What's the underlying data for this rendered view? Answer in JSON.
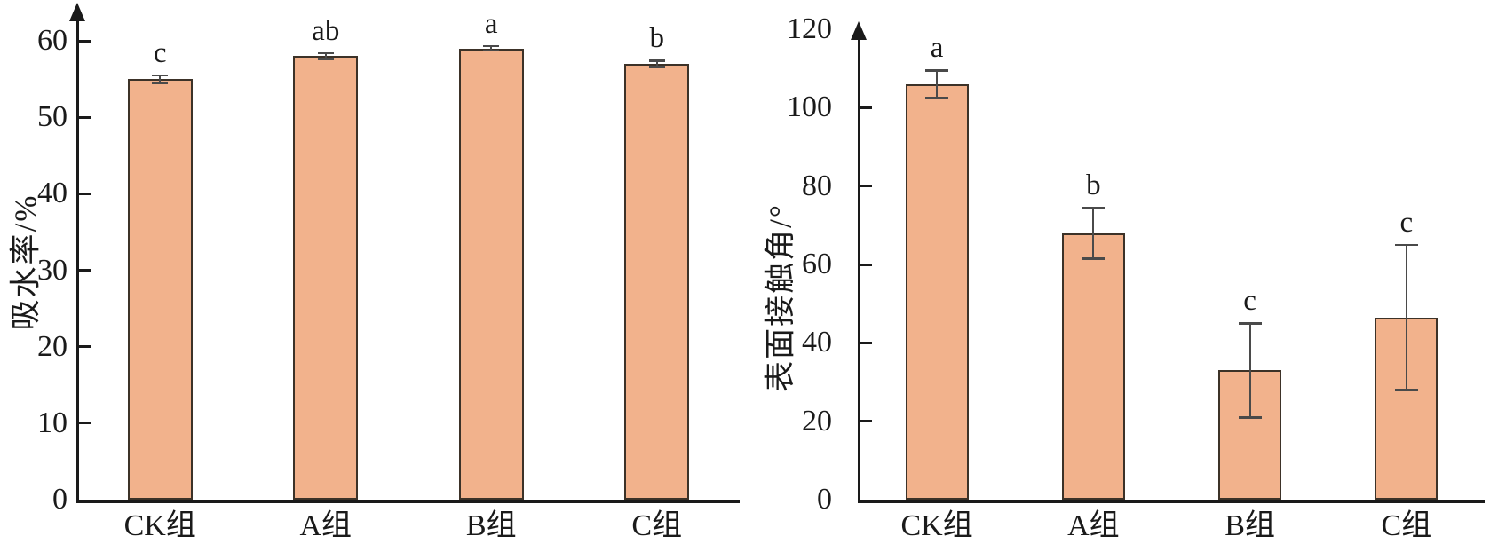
{
  "figure": {
    "background": "#ffffff",
    "bar_fill": "#F2B28C",
    "bar_border": "#3c3228",
    "error_color": "#4a4a4a",
    "axis_color": "#1a1a1a"
  },
  "chart_data": [
    {
      "type": "bar",
      "title": "",
      "xlabel": "",
      "ylabel": "吸水率/%",
      "categories": [
        "CK组",
        "A组",
        "B组",
        "C组"
      ],
      "values": [
        55,
        58,
        59,
        57
      ],
      "errors": [
        0.5,
        0.4,
        0.3,
        0.4
      ],
      "sig_letters": [
        "c",
        "ab",
        "a",
        "b"
      ],
      "ylim": [
        0,
        60
      ],
      "ytick_labels": [
        0,
        10,
        20,
        30,
        40,
        50,
        60
      ],
      "ytick_marks": [
        10,
        20,
        30,
        40,
        50,
        60
      ],
      "grid": false,
      "legend": null,
      "bar_color": "#F2B28C"
    },
    {
      "type": "bar",
      "title": "",
      "xlabel": "",
      "ylabel": "表面接触角/°",
      "categories": [
        "CK组",
        "A组",
        "B组",
        "C组"
      ],
      "values": [
        106,
        68,
        33,
        46.5
      ],
      "errors": [
        3.5,
        6.5,
        12,
        18.5
      ],
      "sig_letters": [
        "a",
        "b",
        "c",
        "c"
      ],
      "ylim": [
        0,
        120
      ],
      "ytick_labels": [
        0,
        20,
        40,
        60,
        80,
        100,
        120
      ],
      "ytick_marks": [
        20,
        40,
        60,
        80,
        100
      ],
      "grid": false,
      "legend": null,
      "bar_color": "#F2B28C"
    }
  ]
}
